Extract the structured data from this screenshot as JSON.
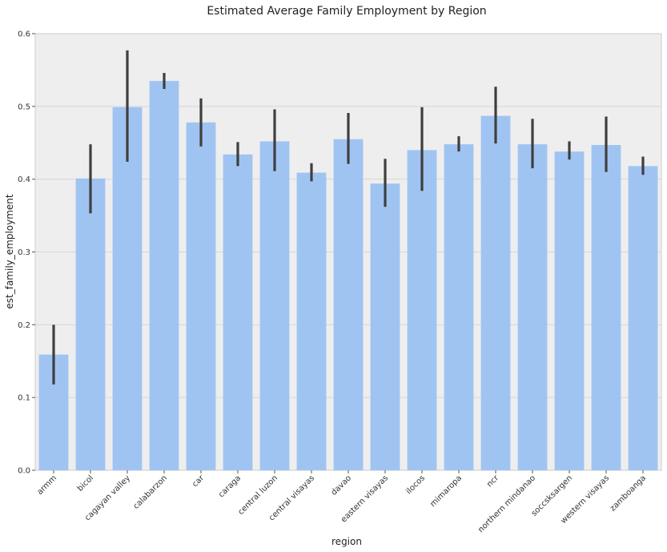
{
  "chart_data": {
    "type": "bar",
    "title": "Estimated Average Family Employment by Region",
    "xlabel": "region",
    "ylabel": "est_family_employment",
    "ylim": [
      0,
      0.6
    ],
    "yticks": [
      "0.0",
      "0.1",
      "0.2",
      "0.3",
      "0.4",
      "0.5",
      "0.6"
    ],
    "grid": true,
    "legend": "none",
    "bar_color": "#a0c4f2",
    "errorbar_color": "#3f3f3f",
    "background_color": "#eeeeee",
    "categories": [
      "armm",
      "bicol",
      "cagayan valley",
      "calabarzon",
      "car",
      "caraga",
      "central luzon",
      "central visayas",
      "davao",
      "eastern visayas",
      "ilocos",
      "mimaropa",
      "ncr",
      "northern mindanao",
      "soccsksargen",
      "western visayas",
      "zamboanga"
    ],
    "values": [
      0.159,
      0.401,
      0.499,
      0.535,
      0.478,
      0.434,
      0.452,
      0.409,
      0.455,
      0.394,
      0.44,
      0.448,
      0.487,
      0.448,
      0.438,
      0.447,
      0.418
    ],
    "ci_low": [
      0.118,
      0.353,
      0.424,
      0.524,
      0.445,
      0.418,
      0.411,
      0.397,
      0.421,
      0.362,
      0.384,
      0.438,
      0.449,
      0.415,
      0.427,
      0.41,
      0.406
    ],
    "ci_high": [
      0.2,
      0.448,
      0.577,
      0.546,
      0.511,
      0.451,
      0.496,
      0.422,
      0.491,
      0.428,
      0.499,
      0.459,
      0.527,
      0.483,
      0.452,
      0.486,
      0.431
    ]
  }
}
